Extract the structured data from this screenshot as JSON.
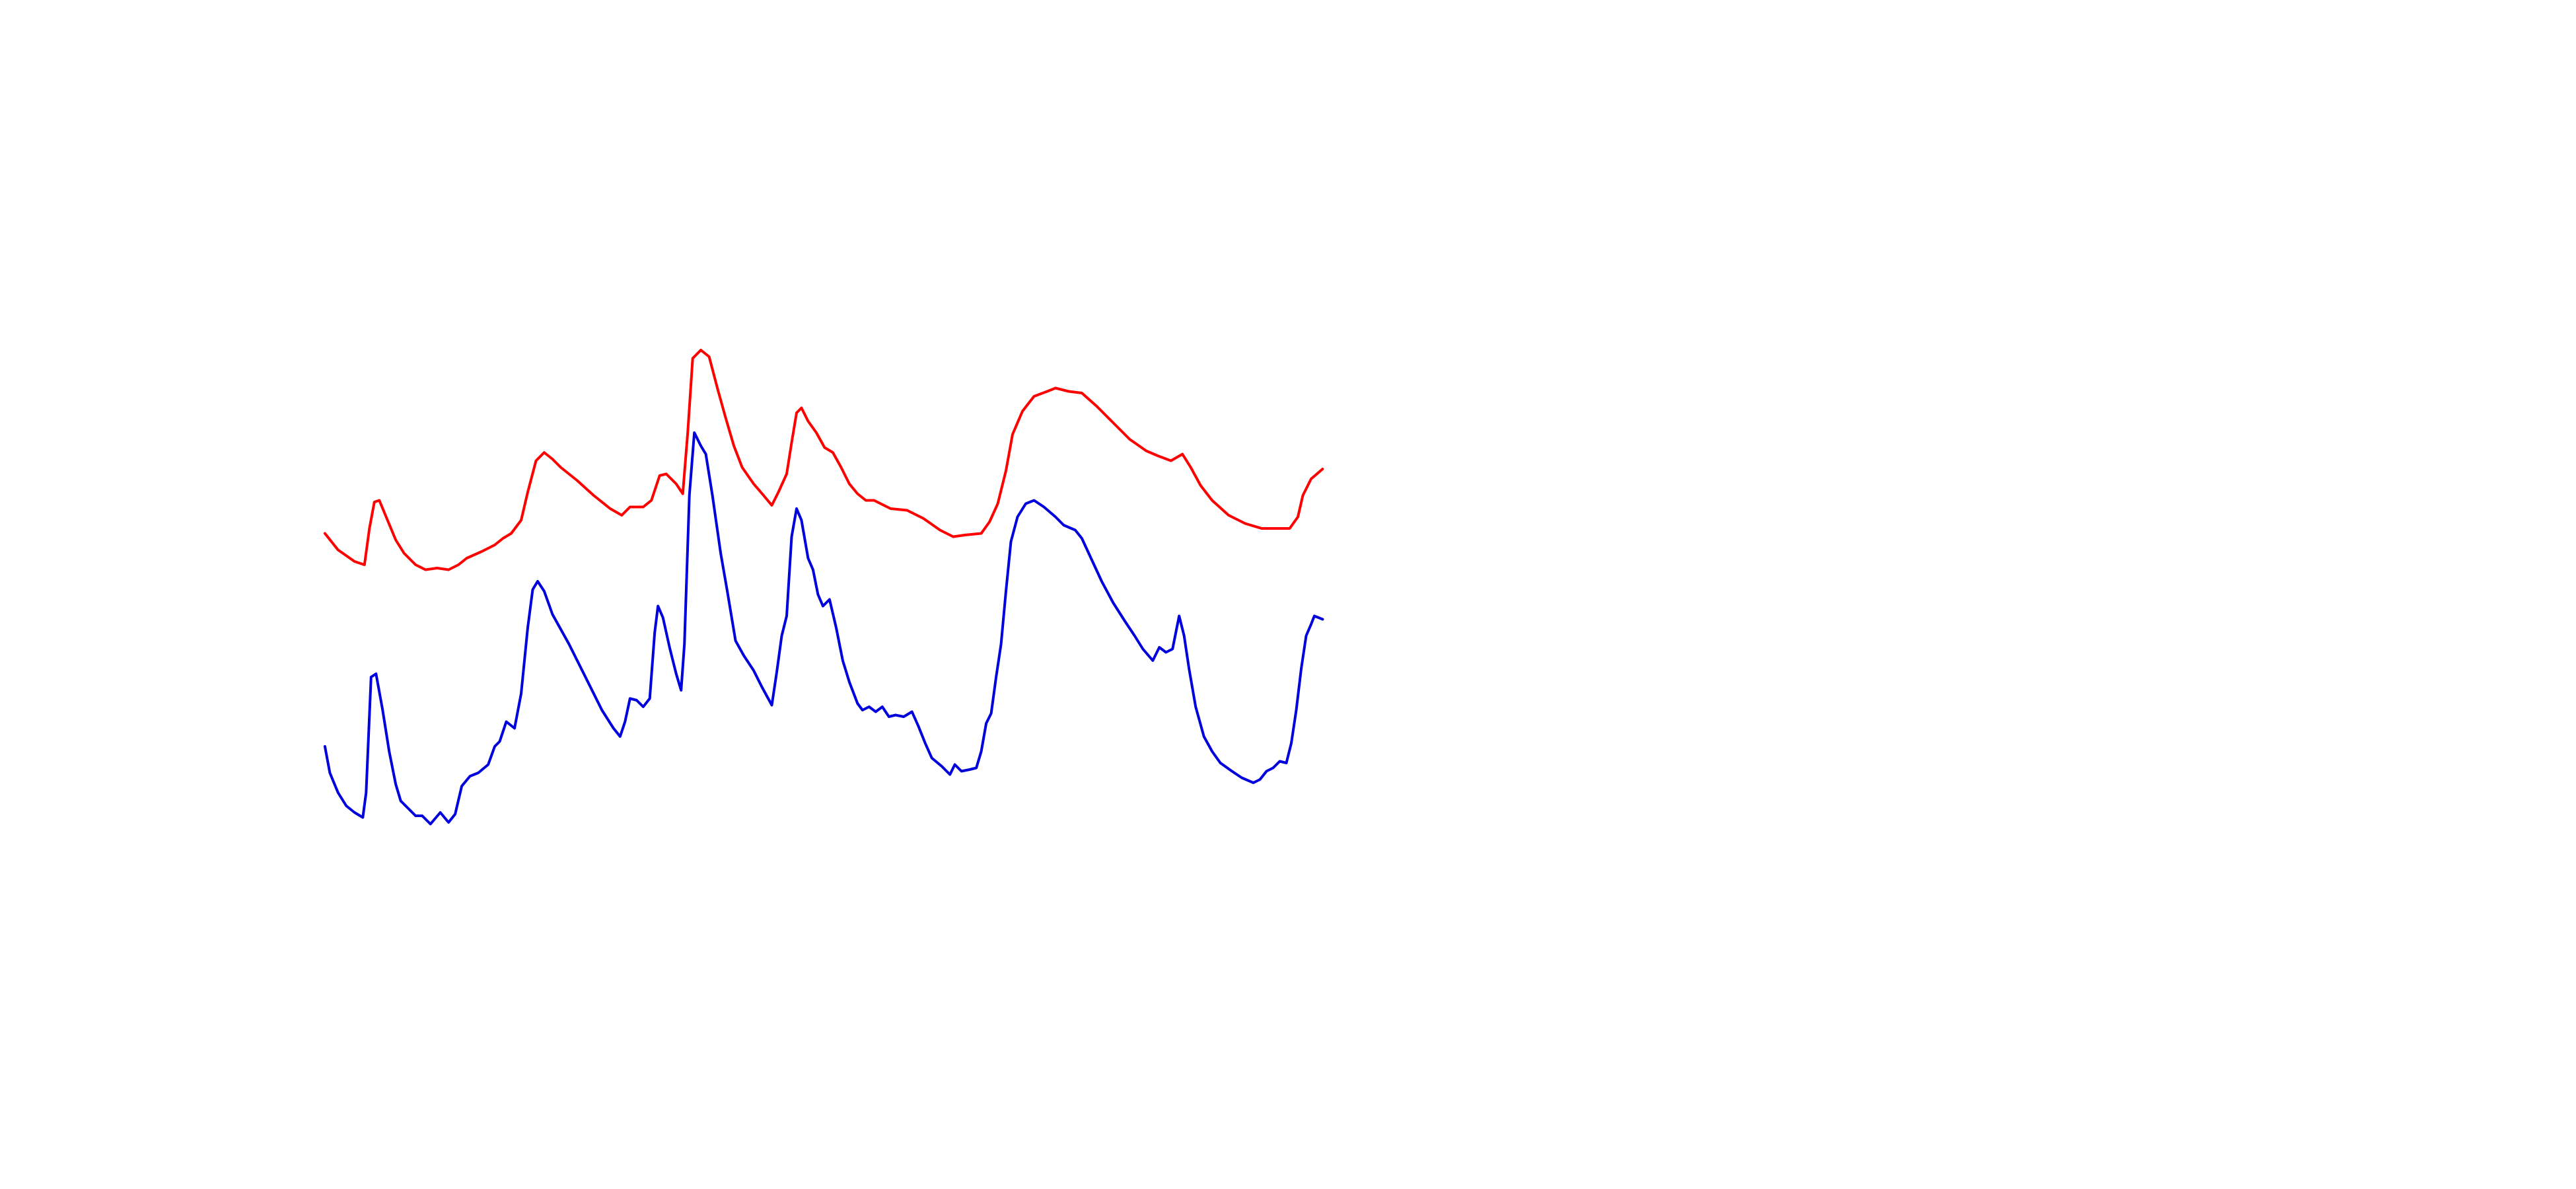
{
  "chart_data": {
    "type": "line",
    "xlim": [
      0,
      1562
    ],
    "ylim": [
      0,
      720
    ],
    "series": [
      {
        "color": "#ff0000",
        "x": [
          197,
          205,
          215,
          221,
          224,
          227,
          230,
          235,
          240,
          245,
          252,
          258,
          265,
          272,
          278,
          283,
          292,
          300,
          305,
          310,
          316,
          320,
          325,
          330,
          335,
          340,
          350,
          360,
          370,
          377,
          382,
          390,
          395,
          400,
          404,
          410,
          414,
          417,
          420,
          425,
          430,
          435,
          440,
          445,
          450,
          457,
          463,
          468,
          472,
          477,
          480,
          483,
          486,
          490,
          495,
          500,
          505,
          510,
          515,
          520,
          525,
          530,
          540,
          550,
          560,
          570,
          578,
          585,
          595,
          600,
          605,
          610,
          614,
          620,
          627,
          635,
          640,
          648,
          656,
          665,
          675,
          685,
          695,
          702,
          710,
          717,
          722,
          728,
          735,
          745,
          755,
          765,
          775,
          782,
          787,
          790,
          795,
          802
        ],
        "values": [
          397,
          387,
          380,
          378,
          400,
          416,
          417,
          405,
          393,
          385,
          378,
          375,
          376,
          375,
          378,
          382,
          386,
          390,
          394,
          397,
          405,
          422,
          441,
          446,
          442,
          437,
          429,
          420,
          412,
          408,
          413,
          413,
          417,
          432,
          433,
          427,
          421,
          458,
          503,
          508,
          504,
          485,
          467,
          450,
          437,
          427,
          420,
          414,
          422,
          433,
          452,
          470,
          473,
          465,
          458,
          449,
          446,
          437,
          427,
          421,
          417,
          417,
          412,
          411,
          406,
          399,
          395,
          396,
          397,
          404,
          415,
          435,
          457,
          471,
          480,
          483,
          485,
          483,
          482,
          474,
          464,
          454,
          447,
          444,
          441,
          445,
          437,
          426,
          417,
          408,
          403,
          400,
          400,
          400,
          407,
          420,
          430,
          436
        ]
      },
      {
        "color": "#0000dd",
        "x": [
          197,
          200,
          205,
          210,
          215,
          220,
          222,
          225,
          228,
          232,
          236,
          240,
          243,
          248,
          252,
          256,
          261,
          267,
          272,
          276,
          280,
          285,
          290,
          296,
          300,
          303,
          307,
          312,
          316,
          320,
          323,
          326,
          330,
          335,
          340,
          345,
          355,
          365,
          372,
          376,
          379,
          382,
          386,
          390,
          394,
          397,
          399,
          402,
          406,
          410,
          413,
          415,
          418,
          421,
          425,
          428,
          432,
          437,
          441,
          446,
          451,
          457,
          462,
          468,
          471,
          474,
          477,
          480,
          483,
          486,
          490,
          493,
          496,
          499,
          503,
          507,
          511,
          515,
          520,
          523,
          527,
          531,
          535,
          539,
          543,
          548,
          553,
          557,
          561,
          565,
          571,
          576,
          579,
          583,
          588,
          592,
          595,
          598,
          601,
          604,
          607,
          610,
          613,
          617,
          622,
          627,
          633,
          640,
          645,
          652,
          656,
          662,
          668,
          675,
          682,
          688,
          693,
          699,
          703,
          707,
          711,
          715,
          718,
          721,
          725,
          730,
          735,
          740,
          747,
          753,
          760,
          764,
          768,
          772,
          776,
          780,
          783,
          786,
          789,
          792,
          795,
          797,
          802
        ],
        "values": [
          268,
          252,
          240,
          232,
          228,
          225,
          240,
          310,
          312,
          290,
          265,
          245,
          235,
          230,
          226,
          226,
          221,
          228,
          222,
          227,
          244,
          250,
          252,
          257,
          268,
          271,
          283,
          279,
          300,
          340,
          363,
          368,
          362,
          348,
          339,
          330,
          310,
          290,
          279,
          274,
          283,
          297,
          296,
          292,
          297,
          337,
          353,
          346,
          328,
          312,
          302,
          330,
          420,
          458,
          450,
          445,
          420,
          385,
          362,
          332,
          323,
          314,
          304,
          293,
          313,
          335,
          347,
          395,
          412,
          405,
          382,
          375,
          360,
          353,
          357,
          340,
          320,
          307,
          294,
          290,
          292,
          289,
          292,
          286,
          287,
          286,
          289,
          280,
          270,
          261,
          256,
          251,
          257,
          253,
          254,
          255,
          265,
          282,
          288,
          310,
          330,
          362,
          392,
          407,
          415,
          417,
          413,
          407,
          402,
          399,
          394,
          381,
          368,
          355,
          344,
          335,
          327,
          320,
          328,
          325,
          327,
          347,
          335,
          315,
          292,
          274,
          265,
          258,
          253,
          249,
          246,
          248,
          253,
          255,
          259,
          258,
          270,
          290,
          315,
          335,
          342,
          347,
          345
        ]
      }
    ]
  }
}
